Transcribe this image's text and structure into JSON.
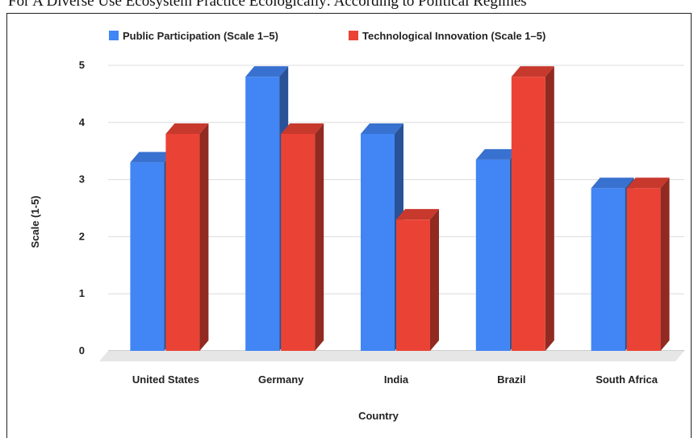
{
  "caption_fragment": "For A Diverse Use Ecosystem Practice Ecologically: According to Political Regimes",
  "chart_data": {
    "type": "bar",
    "title": "",
    "xlabel": "Country",
    "ylabel": "Scale (1-5)",
    "ylim": [
      0,
      5
    ],
    "yticks": [
      0,
      1,
      2,
      3,
      4,
      5
    ],
    "grid": true,
    "legend_position": "top",
    "style": "3d",
    "categories": [
      "United States",
      "Germany",
      "India",
      "Brazil",
      "South Africa"
    ],
    "series": [
      {
        "name": "Public Participation (Scale 1–5)",
        "color": "#4285f4",
        "values": [
          3.3,
          4.8,
          3.8,
          3.35,
          2.85
        ]
      },
      {
        "name": "Technological Innovation (Scale 1–5)",
        "color": "#ea4335",
        "values": [
          3.8,
          3.8,
          2.3,
          4.8,
          2.85
        ]
      }
    ]
  }
}
